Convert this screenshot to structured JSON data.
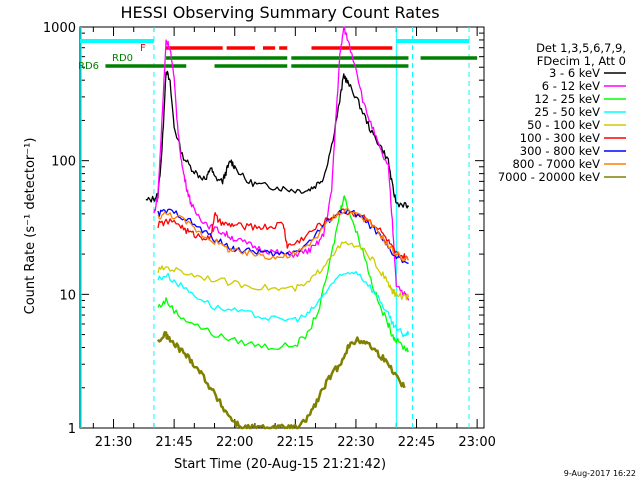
{
  "chart_data": {
    "type": "line",
    "title": "HESSI Observing Summary Count Rates",
    "xlabel": "Start Time (20-Aug-15 21:21:42)",
    "ylabel": "Count Rate (s⁻¹ detector⁻¹)",
    "yscale": "log",
    "ylim": [
      1,
      1000
    ],
    "xlim": [
      "21:21:42",
      "23:01:42"
    ],
    "x_tick_labels": [
      "21:30",
      "21:45",
      "22:00",
      "22:15",
      "22:30",
      "22:45",
      "23:00"
    ],
    "y_tick_labels": [
      "1",
      "10",
      "100",
      "1000"
    ],
    "legend_header": [
      "Det 1,3,5,6,7,9,",
      "FDecim 1, Att 0"
    ],
    "legend_position": "right",
    "timestamp": "9-Aug-2017 16:22",
    "flag_bars": [
      {
        "label": "F",
        "color": "#ff0000",
        "segments": [
          [
            "21:43",
            "21:57"
          ],
          [
            "21:58",
            "22:05"
          ],
          [
            "22:07",
            "22:10"
          ],
          [
            "22:11",
            "22:13"
          ],
          [
            "22:19",
            "22:39"
          ]
        ]
      },
      {
        "label": "RD0",
        "color": "#008000",
        "segments": [
          [
            "21:43",
            "21:55"
          ],
          [
            "21:55",
            "22:13"
          ],
          [
            "22:14",
            "22:43"
          ],
          [
            "22:46",
            "22:60"
          ]
        ]
      },
      {
        "label": "RD6",
        "color": "#008000",
        "segments": [
          [
            "21:28",
            "21:48"
          ],
          [
            "21:55",
            "22:13"
          ],
          [
            "22:14",
            "22:43"
          ]
        ]
      }
    ],
    "series": [
      {
        "name": "3 - 6 keV",
        "color": "#000000",
        "x": [
          "21:38",
          "21:40",
          "21:41",
          "21:42",
          "21:43",
          "21:44",
          "21:45",
          "21:47",
          "21:49",
          "21:51",
          "21:53",
          "21:54",
          "21:55",
          "21:57",
          "21:58",
          "21:59",
          "22:00",
          "22:03",
          "22:06",
          "22:09",
          "22:12",
          "22:15",
          "22:18",
          "22:20",
          "22:22",
          "22:24",
          "22:26",
          "22:27",
          "22:28",
          "22:30",
          "22:32",
          "22:34",
          "22:36",
          "22:38",
          "22:39",
          "22:40",
          "22:42",
          "22:43"
        ],
        "values": [
          50,
          52,
          55,
          120,
          480,
          380,
          180,
          110,
          90,
          78,
          72,
          90,
          75,
          70,
          85,
          100,
          90,
          70,
          66,
          64,
          62,
          60,
          60,
          65,
          75,
          130,
          280,
          440,
          380,
          300,
          220,
          160,
          130,
          100,
          65,
          48,
          47,
          45
        ]
      },
      {
        "name": "6 - 12 keV",
        "color": "#ff00ff",
        "x": [
          "21:40",
          "21:41",
          "21:42",
          "21:43",
          "21:44",
          "21:45",
          "21:46",
          "21:47",
          "21:48",
          "21:49",
          "21:50",
          "21:52",
          "21:54",
          "21:56",
          "21:58",
          "22:00",
          "22:03",
          "22:06",
          "22:09",
          "22:12",
          "22:15",
          "22:18",
          "22:20",
          "22:22",
          "22:24",
          "22:25",
          "22:26",
          "22:27",
          "22:28",
          "22:30",
          "22:32",
          "22:34",
          "22:36",
          "22:38",
          "22:39",
          "22:40",
          "22:42",
          "22:43"
        ],
        "values": [
          40,
          55,
          200,
          800,
          700,
          400,
          160,
          90,
          65,
          50,
          42,
          36,
          32,
          30,
          28,
          26,
          24,
          22,
          21,
          20,
          20,
          21,
          23,
          28,
          60,
          200,
          600,
          1000,
          800,
          500,
          260,
          180,
          120,
          90,
          35,
          12,
          10,
          9
        ]
      },
      {
        "name": "12 - 25 keV",
        "color": "#00ff00",
        "x": [
          "21:41",
          "21:43",
          "21:46",
          "21:50",
          "21:55",
          "22:00",
          "22:05",
          "22:10",
          "22:15",
          "22:18",
          "22:21",
          "22:24",
          "22:26",
          "22:27",
          "22:28",
          "22:30",
          "22:32",
          "22:34",
          "22:36",
          "22:38",
          "22:39",
          "22:40",
          "22:42",
          "22:43"
        ],
        "values": [
          8,
          9,
          7,
          6,
          5,
          4.5,
          4.2,
          4.0,
          4.2,
          5,
          8,
          20,
          40,
          55,
          45,
          30,
          20,
          12,
          8,
          6,
          5,
          4.5,
          4,
          3.8
        ]
      },
      {
        "name": "25 - 50 keV",
        "color": "#00ffff",
        "x": [
          "21:41",
          "21:43",
          "21:46",
          "21:50",
          "21:55",
          "22:00",
          "22:05",
          "22:10",
          "22:15",
          "22:18",
          "22:21",
          "22:24",
          "22:27",
          "22:30",
          "22:33",
          "22:36",
          "22:38",
          "22:39",
          "22:40",
          "22:42",
          "22:43"
        ],
        "values": [
          13,
          14,
          12,
          10,
          8,
          7.5,
          7,
          6.5,
          6.5,
          7,
          9,
          12,
          14,
          15,
          12,
          9,
          7,
          6,
          5.5,
          5,
          5
        ]
      },
      {
        "name": "50 - 100 keV",
        "color": "#cccc00",
        "x": [
          "21:41",
          "21:43",
          "21:46",
          "21:50",
          "21:55",
          "22:00",
          "22:05",
          "22:10",
          "22:15",
          "22:18",
          "22:21",
          "22:24",
          "22:27",
          "22:30",
          "22:33",
          "22:36",
          "22:38",
          "22:39",
          "22:40",
          "22:42",
          "22:43"
        ],
        "values": [
          15,
          16,
          15,
          14,
          13,
          12,
          11.5,
          11,
          11,
          12,
          15,
          20,
          24,
          23,
          20,
          15,
          12,
          10.5,
          10,
          9.5,
          9.5
        ]
      },
      {
        "name": "100 - 300 keV",
        "color": "#ff0000",
        "x": [
          "21:41",
          "21:43",
          "21:46",
          "21:48",
          "21:50",
          "21:52",
          "21:54",
          "21:55",
          "21:56",
          "21:58",
          "22:00",
          "22:03",
          "22:06",
          "22:09",
          "22:12",
          "22:13",
          "22:15",
          "22:18",
          "22:21",
          "22:24",
          "22:27",
          "22:30",
          "22:33",
          "22:36",
          "22:38",
          "22:39",
          "22:40",
          "22:42",
          "22:43"
        ],
        "values": [
          33,
          35,
          34,
          30,
          28,
          27,
          26,
          40,
          35,
          33,
          33,
          32,
          32,
          32,
          34,
          23,
          24,
          28,
          33,
          38,
          42,
          40,
          37,
          30,
          25,
          22,
          20,
          19,
          18
        ]
      },
      {
        "name": "300 - 800 keV",
        "color": "#0000ff",
        "x": [
          "21:41",
          "21:43",
          "21:46",
          "21:49",
          "21:52",
          "21:55",
          "21:58",
          "22:00",
          "22:03",
          "22:06",
          "22:09",
          "22:12",
          "22:15",
          "22:18",
          "22:21",
          "22:24",
          "22:27",
          "22:30",
          "22:33",
          "22:36",
          "22:38",
          "22:40",
          "22:43"
        ],
        "values": [
          40,
          42,
          40,
          35,
          30,
          26,
          23,
          22,
          21,
          21,
          20,
          20,
          21,
          24,
          30,
          38,
          42,
          40,
          34,
          27,
          22,
          19,
          17
        ]
      },
      {
        "name": "800 - 7000 keV",
        "color": "#ff8000",
        "x": [
          "21:41",
          "21:43",
          "21:46",
          "21:49",
          "21:52",
          "21:55",
          "21:58",
          "22:00",
          "22:03",
          "22:06",
          "22:09",
          "22:12",
          "22:15",
          "22:18",
          "22:21",
          "22:24",
          "22:27",
          "22:30",
          "22:33",
          "22:36",
          "22:38",
          "22:40",
          "22:43"
        ],
        "values": [
          38,
          40,
          38,
          33,
          28,
          25,
          22,
          21,
          20,
          20,
          19,
          19,
          20,
          23,
          29,
          37,
          43,
          41,
          35,
          28,
          23,
          20,
          18
        ]
      },
      {
        "name": "7000 - 20000 keV",
        "color": "#808000",
        "x": [
          "21:41",
          "21:43",
          "21:44",
          "21:46",
          "21:48",
          "21:50",
          "21:52",
          "21:54",
          "21:56",
          "21:58",
          "22:00",
          "22:02",
          "22:04",
          "22:06",
          "22:08",
          "22:10",
          "22:12",
          "22:14",
          "22:16",
          "22:18",
          "22:20",
          "22:22",
          "22:24",
          "22:26",
          "22:28",
          "22:30",
          "22:32",
          "22:34",
          "22:36",
          "22:38",
          "22:40",
          "22:42"
        ],
        "values": [
          4.5,
          5,
          4.5,
          4,
          3.5,
          3,
          2.5,
          2,
          1.6,
          1.3,
          1.1,
          1,
          1,
          1,
          1,
          1,
          1,
          1,
          1,
          1.2,
          1.5,
          2,
          2.5,
          3,
          4,
          4.5,
          4.5,
          4,
          3.5,
          3,
          2.5,
          2
        ]
      }
    ],
    "vertical_markers": [
      {
        "time": "21:40",
        "color": "#00ffff",
        "style": "dashed"
      },
      {
        "time": "22:40",
        "color": "#00ffff",
        "style": "solid"
      },
      {
        "time": "22:44",
        "color": "#00ffff",
        "style": "dashed"
      },
      {
        "time": "22:58",
        "color": "#00ffff",
        "style": "dashed"
      }
    ],
    "cyan_top_bars": [
      [
        "21:21:42",
        "21:40"
      ],
      [
        "22:40",
        "22:58"
      ]
    ]
  }
}
